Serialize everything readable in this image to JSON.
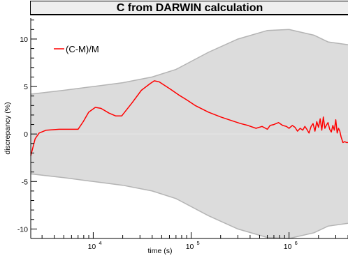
{
  "chart_data": {
    "type": "line",
    "title": "C from DARWIN calculation",
    "xlabel": "time (s)",
    "ylabel": "discrepancy (%)",
    "xscale": "log",
    "xlim": [
      2300,
      4000000
    ],
    "ylim": [
      -11,
      12.2
    ],
    "x_tick_labels": [
      "10",
      "10",
      "10"
    ],
    "x_tick_exponents": [
      "4",
      "5",
      "6"
    ],
    "x_tick_values": [
      10000,
      100000,
      1000000
    ],
    "y_ticks": [
      10,
      5,
      0,
      -5,
      -10
    ],
    "y_tick_labels": [
      "10",
      "5",
      "0",
      "-5",
      "-10"
    ],
    "legend": {
      "position": "top-left",
      "entries": [
        "(C-M)/M"
      ]
    },
    "grid": false,
    "zero_line": true,
    "band": {
      "name": "uncertainty",
      "color": "#b4b4b4",
      "fill": "#dcdcdc",
      "x": [
        2300,
        5000,
        10000,
        20000,
        40000,
        70000,
        150000,
        300000,
        600000,
        1000000,
        1800000,
        2500000,
        4000000
      ],
      "upper": [
        4.2,
        4.6,
        5.0,
        5.4,
        6.0,
        6.8,
        8.6,
        10.0,
        10.9,
        11.0,
        10.4,
        9.7,
        9.4
      ],
      "lower": [
        -4.2,
        -4.6,
        -5.0,
        -5.4,
        -6.0,
        -6.8,
        -8.6,
        -10.0,
        -10.9,
        -11.0,
        -10.4,
        -9.7,
        -9.4
      ]
    },
    "series": [
      {
        "name": "(C-M)/M",
        "color": "#ff0000",
        "x": [
          2300,
          2550,
          2800,
          3300,
          4500,
          7000,
          7900,
          9000,
          10500,
          12000,
          14500,
          17000,
          19500,
          25000,
          31000,
          38000,
          42000,
          47000,
          52000,
          62000,
          75000,
          90000,
          110000,
          150000,
          200000,
          260000,
          320000,
          380000,
          460000,
          530000,
          600000,
          640000,
          700000,
          780000,
          860000,
          940000,
          1000000,
          1080000,
          1150000,
          1220000,
          1300000,
          1380000,
          1450000,
          1520000,
          1600000,
          1680000,
          1760000,
          1840000,
          1920000,
          2000000,
          2080000,
          2160000,
          2240000,
          2320000,
          2400000,
          2500000,
          2600000,
          2700000,
          2800000,
          2900000,
          3000000,
          3100000,
          3200000,
          3300000,
          3400000,
          3550000,
          3700000,
          3850000,
          4000000
        ],
        "y": [
          -2.3,
          -0.5,
          0.1,
          0.4,
          0.5,
          0.5,
          1.3,
          2.3,
          2.8,
          2.7,
          2.2,
          1.9,
          1.9,
          3.3,
          4.6,
          5.3,
          5.6,
          5.5,
          5.2,
          4.7,
          4.1,
          3.6,
          3.0,
          2.3,
          1.8,
          1.4,
          1.1,
          0.9,
          0.6,
          0.8,
          0.5,
          0.9,
          1.0,
          1.2,
          0.9,
          0.8,
          0.6,
          0.9,
          0.7,
          0.3,
          0.6,
          0.4,
          0.8,
          0.5,
          0.1,
          0.8,
          1.1,
          0.3,
          1.3,
          0.7,
          1.6,
          0.4,
          1.8,
          0.6,
          0.9,
          1.2,
          0.5,
          0.2,
          0.9,
          0.4,
          1.5,
          0.1,
          0.6,
          0.3,
          -0.3,
          -0.9,
          -0.8,
          -0.9,
          -0.9
        ]
      }
    ]
  }
}
